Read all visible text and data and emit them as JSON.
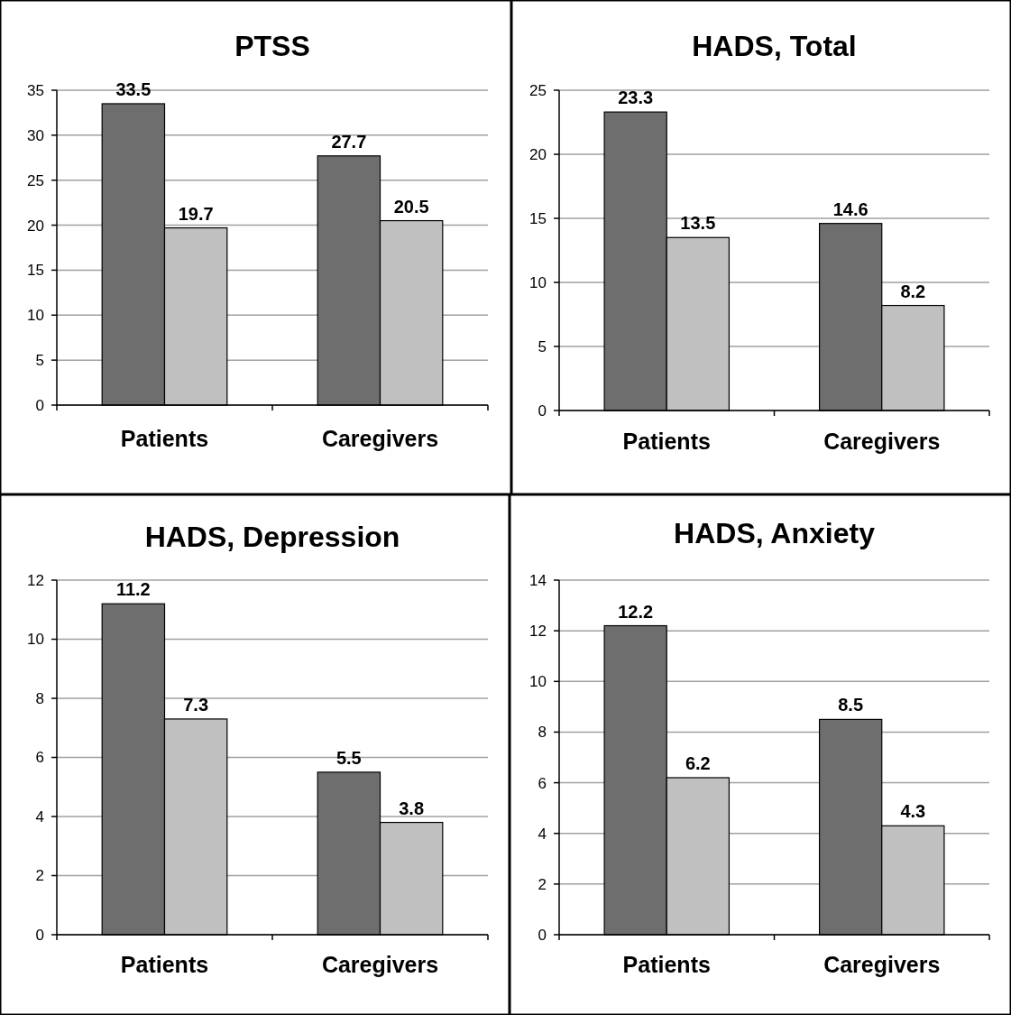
{
  "chart_data": [
    {
      "type": "bar",
      "title": "PTSS",
      "categories": [
        "Patients",
        "Caregivers"
      ],
      "series": [
        {
          "color": "#6e6e6e",
          "values": [
            33.5,
            27.7
          ]
        },
        {
          "color": "#c0c0c0",
          "values": [
            19.7,
            20.5
          ]
        }
      ],
      "ylim": [
        0,
        35
      ],
      "yticks": [
        0,
        5,
        10,
        15,
        20,
        25,
        30,
        35
      ],
      "grid": "y",
      "data_labels": true
    },
    {
      "type": "bar",
      "title": "HADS, Total",
      "categories": [
        "Patients",
        "Caregivers"
      ],
      "series": [
        {
          "color": "#6e6e6e",
          "values": [
            23.3,
            14.6
          ]
        },
        {
          "color": "#c0c0c0",
          "values": [
            13.5,
            8.2
          ]
        }
      ],
      "ylim": [
        0,
        25
      ],
      "yticks": [
        0,
        5,
        10,
        15,
        20,
        25
      ],
      "grid": "y",
      "data_labels": true
    },
    {
      "type": "bar",
      "title": "HADS, Depression",
      "categories": [
        "Patients",
        "Caregivers"
      ],
      "series": [
        {
          "color": "#6e6e6e",
          "values": [
            11.2,
            5.5
          ]
        },
        {
          "color": "#c0c0c0",
          "values": [
            7.3,
            3.8
          ]
        }
      ],
      "ylim": [
        0,
        12
      ],
      "yticks": [
        0,
        2,
        4,
        6,
        8,
        10,
        12
      ],
      "grid": "y",
      "data_labels": true
    },
    {
      "type": "bar",
      "title": "HADS, Anxiety",
      "categories": [
        "Patients",
        "Caregivers"
      ],
      "series": [
        {
          "color": "#6e6e6e",
          "values": [
            12.2,
            8.5
          ]
        },
        {
          "color": "#c0c0c0",
          "values": [
            6.2,
            4.3
          ]
        }
      ],
      "ylim": [
        0,
        14
      ],
      "yticks": [
        0,
        2,
        4,
        6,
        8,
        10,
        12,
        14
      ],
      "grid": "y",
      "data_labels": true
    }
  ]
}
